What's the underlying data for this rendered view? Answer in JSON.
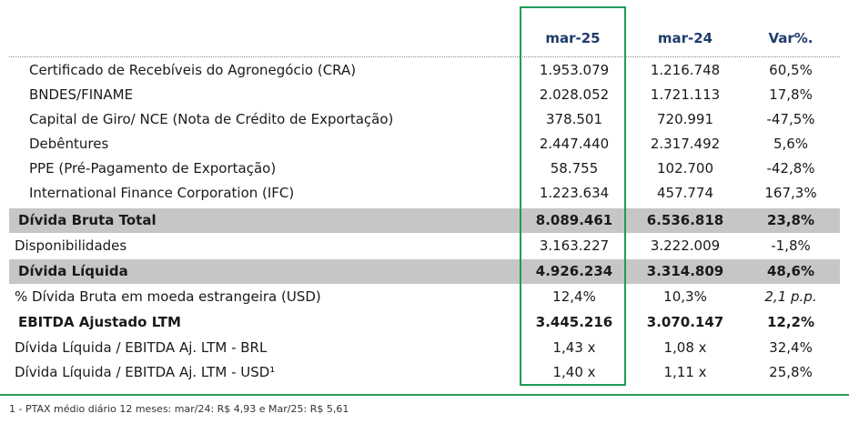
{
  "header": {
    "col1": "mar-25",
    "col2": "mar-24",
    "col3": "Var%."
  },
  "rows": [
    {
      "label": "Certificado de Recebíveis do Agronegócio (CRA)",
      "v1": "1.953.079",
      "v2": "1.216.748",
      "v3": "60,5%"
    },
    {
      "label": "BNDES/FINAME",
      "v1": "2.028.052",
      "v2": "1.721.113",
      "v3": "17,8%"
    },
    {
      "label": "Capital de Giro/ NCE (Nota de Crédito de Exportação)",
      "v1": "378.501",
      "v2": "720.991",
      "v3": "-47,5%"
    },
    {
      "label": "Debêntures",
      "v1": "2.447.440",
      "v2": "2.317.492",
      "v3": "5,6%"
    },
    {
      "label": "PPE (Pré-Pagamento de Exportação)",
      "v1": "58.755",
      "v2": "102.700",
      "v3": "-42,8%"
    },
    {
      "label": "International Finance Corporation (IFC)",
      "v1": "1.223.634",
      "v2": "457.774",
      "v3": "167,3%"
    },
    {
      "label": "Dívida Bruta Total",
      "v1": "8.089.461",
      "v2": "6.536.818",
      "v3": "23,8%"
    },
    {
      "label": "Disponibilidades",
      "v1": "3.163.227",
      "v2": "3.222.009",
      "v3": "-1,8%"
    },
    {
      "label": "Dívida Líquida",
      "v1": "4.926.234",
      "v2": "3.314.809",
      "v3": "48,6%"
    },
    {
      "label": "% Dívida Bruta em moeda estrangeira (USD)",
      "v1": "12,4%",
      "v2": "10,3%",
      "v3": "2,1 p.p."
    },
    {
      "label": "EBITDA Ajustado LTM",
      "v1": "3.445.216",
      "v2": "3.070.147",
      "v3": "12,2%"
    },
    {
      "label": "Dívida Líquida / EBITDA Aj. LTM - BRL",
      "v1": "1,43 x",
      "v2": "1,08 x",
      "v3": "32,4%"
    },
    {
      "label": "Dívida Líquida / EBITDA Aj. LTM - USD¹",
      "v1": "1,40 x",
      "v2": "1,11 x",
      "v3": "25,8%"
    }
  ],
  "footnote": "1 - PTAX médio diário 12 meses: mar/24: R$ 4,93 e Mar/25: R$ 5,61",
  "colors": {
    "header_text": "#1f3c6b",
    "highlight_border": "#1e9b5a",
    "shade": "#c6c6c6",
    "rule": "#2a9a5c"
  }
}
